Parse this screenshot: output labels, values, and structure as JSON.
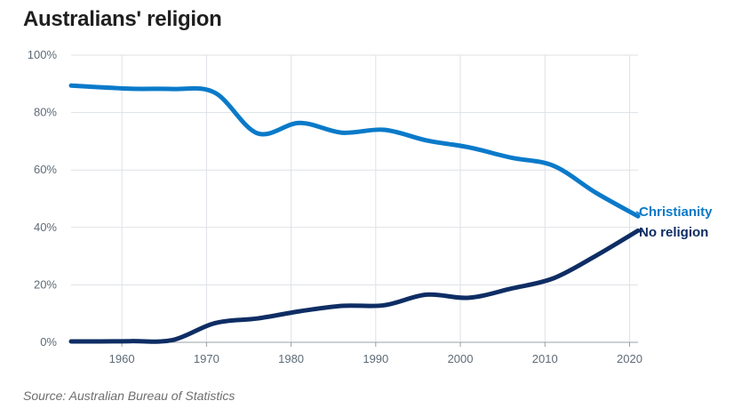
{
  "header": {
    "title": "Australians' religion"
  },
  "footer": {
    "source": "Source: Australian Bureau of Statistics"
  },
  "colors": {
    "christianity": "#0a7ac9",
    "no_religion": "#0e2d64",
    "grid": "#dde1e6",
    "axis": "#9aa0a6"
  },
  "chart_data": {
    "type": "line",
    "title": "Australians' religion",
    "xlabel": "",
    "ylabel": "",
    "xlim": [
      1954,
      2021
    ],
    "ylim": [
      0,
      100
    ],
    "y_ticks": [
      "0%",
      "20%",
      "40%",
      "60%",
      "80%",
      "100%"
    ],
    "y_tick_values": [
      0,
      20,
      40,
      60,
      80,
      100
    ],
    "x_ticks": [
      "1960",
      "1970",
      "1980",
      "1990",
      "2000",
      "2010",
      "2020"
    ],
    "x_tick_values": [
      1960,
      1970,
      1980,
      1990,
      2000,
      2010,
      2020
    ],
    "grid": true,
    "series": [
      {
        "name": "Christianity",
        "color": "#0a7ac9",
        "x": [
          1954,
          1961,
          1966,
          1971,
          1976,
          1981,
          1986,
          1991,
          1996,
          2001,
          2006,
          2011,
          2016,
          2021
        ],
        "values": [
          89.4,
          88.3,
          88.2,
          86.9,
          72.8,
          76.4,
          73.0,
          74.0,
          70.3,
          67.9,
          64.3,
          61.5,
          52.1,
          43.9
        ]
      },
      {
        "name": "No religion",
        "color": "#0e2d64",
        "x": [
          1954,
          1961,
          1966,
          1971,
          1976,
          1981,
          1986,
          1991,
          1996,
          2001,
          2006,
          2011,
          2016,
          2021
        ],
        "values": [
          0.3,
          0.4,
          0.8,
          6.7,
          8.3,
          10.8,
          12.7,
          12.9,
          16.6,
          15.5,
          18.7,
          22.3,
          30.1,
          38.9
        ]
      }
    ]
  }
}
